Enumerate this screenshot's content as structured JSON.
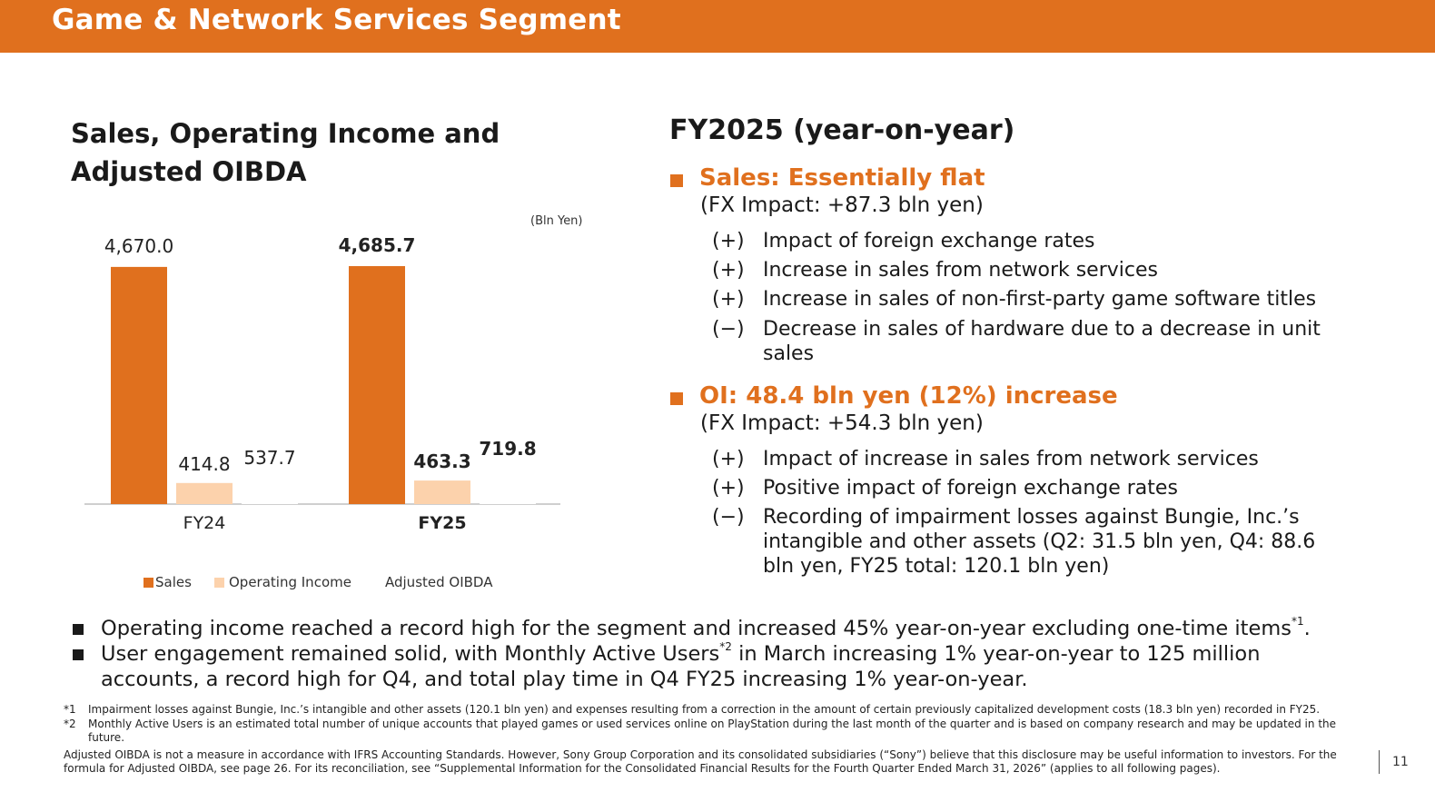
{
  "header": {
    "title": "Game & Network Services Segment"
  },
  "left": {
    "title": "Sales, Operating Income and Adjusted OIBDA",
    "unit": "(Bln Yen)"
  },
  "legend": [
    {
      "label": "Sales",
      "color": "#e0701e"
    },
    {
      "label": "Operating Income",
      "color": "#fcd2ac"
    },
    {
      "label": "Adjusted OIBDA",
      "color": "#ffffff"
    }
  ],
  "chart_data": {
    "type": "bar",
    "categories": [
      "FY24",
      "FY25"
    ],
    "series": [
      {
        "name": "Sales",
        "color": "#e0701e",
        "values": [
          4670.0,
          4685.7
        ],
        "labels": [
          "4,670.0",
          "4,685.7"
        ]
      },
      {
        "name": "Operating Income",
        "color": "#fcd2ac",
        "values": [
          414.8,
          463.3
        ],
        "labels": [
          "414.8",
          "463.3"
        ]
      },
      {
        "name": "Adjusted OIBDA",
        "color": "#ffffff",
        "values": [
          537.7,
          719.8
        ],
        "labels": [
          "537.7",
          "719.8"
        ]
      }
    ],
    "bold_category": "FY25",
    "unit": "(Bln Yen)"
  },
  "right": {
    "title": "FY2025 (year-on-year)",
    "sections": [
      {
        "heading": "Sales: Essentially flat",
        "fx": "(FX Impact: +87.3 bln yen)",
        "items": [
          {
            "mark": "(+)",
            "text": "Impact of foreign exchange rates"
          },
          {
            "mark": "(+)",
            "text": "Increase in sales from network services"
          },
          {
            "mark": "(+)",
            "text": "Increase in sales of non-first-party game software titles"
          },
          {
            "mark": "(−)",
            "text": "Decrease in sales of hardware due to a decrease in unit sales"
          }
        ]
      },
      {
        "heading": "OI: 48.4 bln yen (12%) increase",
        "fx": "(FX Impact: +54.3 bln yen)",
        "items": [
          {
            "mark": "(+)",
            "text": "Impact of increase in sales from network services"
          },
          {
            "mark": "(+)",
            "text": "Positive impact of foreign exchange rates"
          },
          {
            "mark": "(−)",
            "text": "Recording of impairment losses against Bungie, Inc.’s intangible and other assets (Q2: 31.5 bln yen, Q4: 88.6 bln yen, FY25 total: 120.1 bln yen)"
          }
        ]
      }
    ]
  },
  "bottom": [
    {
      "text": "Operating income reached a record high for the segment and increased 45% year-on-year excluding one-time items",
      "sup": "*1",
      "after": "."
    },
    {
      "text": "User engagement remained solid, with Monthly Active Users",
      "sup": "*2",
      "after": " in March increasing 1% year-on-year to 125 million accounts, a record high for Q4, and total play time in Q4 FY25 increasing 1% year-on-year."
    }
  ],
  "footnotes": [
    {
      "mark": "*1",
      "text": "Impairment losses against Bungie, Inc.’s intangible and other assets (120.1 bln yen) and expenses resulting from a correction in the amount of certain previously capitalized development costs (18.3 bln yen) recorded in FY25."
    },
    {
      "mark": "*2",
      "text": "Monthly Active Users is an estimated total number of unique accounts that played games or used services online on PlayStation during the last month of the quarter and is based on company research and may be updated in the future."
    }
  ],
  "note": "Adjusted OIBDA is not a measure in accordance with IFRS Accounting Standards. However, Sony Group Corporation and its consolidated subsidiaries (“Sony”) believe that this disclosure may be useful information to investors. For the formula for Adjusted OIBDA, see page 26. For its reconciliation, see “Supplemental Information for the Consolidated Financial Results for the Fourth Quarter Ended March 31, 2026” (applies to all following pages).",
  "page_number": "11"
}
